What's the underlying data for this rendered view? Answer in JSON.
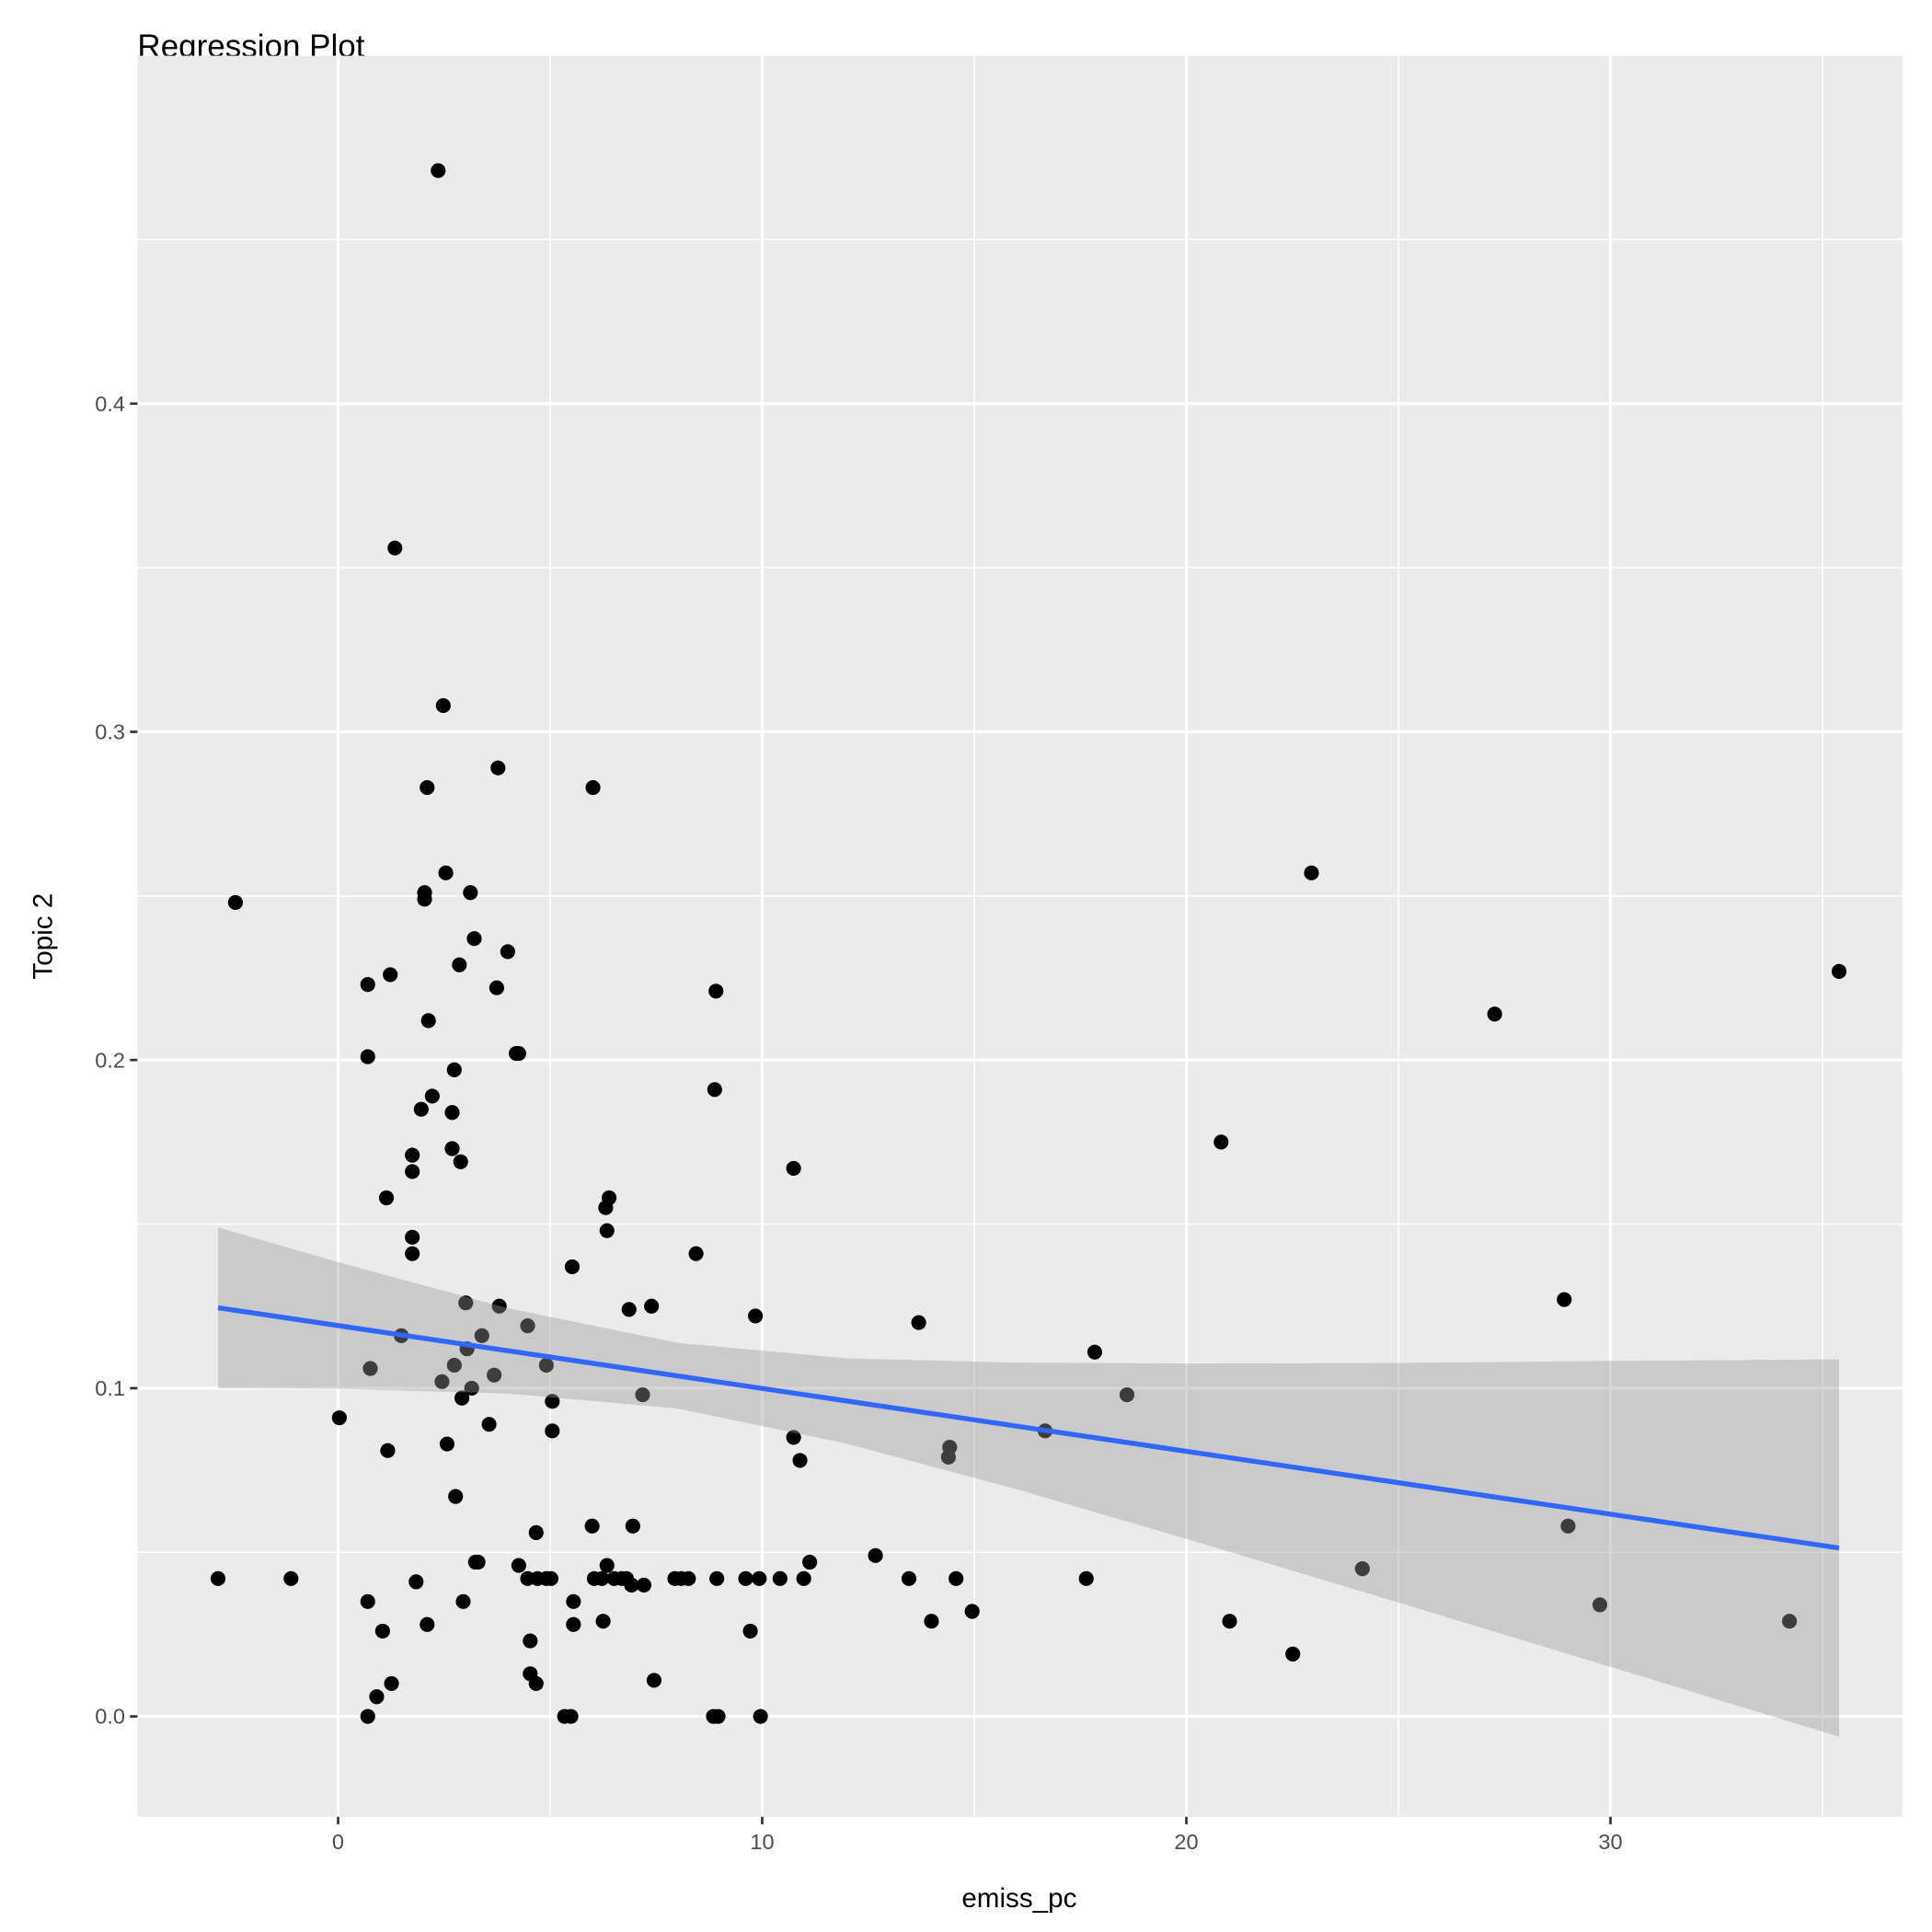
{
  "chart_data": {
    "type": "scatter",
    "title": "Regression Plot",
    "xlabel": "emiss_pc",
    "ylabel": "Topic 2",
    "xlim": [
      -4.73,
      36.88
    ],
    "ylim": [
      -0.0306,
      0.506
    ],
    "x_ticks": [
      0,
      10,
      20,
      30
    ],
    "x_tick_labels": [
      "0",
      "10",
      "20",
      "30"
    ],
    "y_ticks": [
      0.0,
      0.1,
      0.2,
      0.3,
      0.4
    ],
    "y_tick_labels": [
      "0.0",
      "0.1",
      "0.2",
      "0.3",
      "0.4"
    ],
    "grid": true,
    "legend": "none",
    "colors": {
      "panel": "#ebebeb",
      "grid": "#ffffff",
      "points": "#000000",
      "fit_line": "#3366ff",
      "ci_band": "#999999"
    },
    "points": [
      [
        -2.83,
        0.042
      ],
      [
        -2.42,
        0.248
      ],
      [
        -1.11,
        0.042
      ],
      [
        0.03,
        0.091
      ],
      [
        0.7,
        0.223
      ],
      [
        0.7,
        0.201
      ],
      [
        0.76,
        0.106
      ],
      [
        0.7,
        0.035
      ],
      [
        0.7,
        0.0
      ],
      [
        0.91,
        0.006
      ],
      [
        1.05,
        0.026
      ],
      [
        1.17,
        0.081
      ],
      [
        1.14,
        0.158
      ],
      [
        1.23,
        0.226
      ],
      [
        1.26,
        0.01
      ],
      [
        1.34,
        0.356
      ],
      [
        1.49,
        0.116
      ],
      [
        1.75,
        0.171
      ],
      [
        1.75,
        0.166
      ],
      [
        1.75,
        0.146
      ],
      [
        1.75,
        0.141
      ],
      [
        1.84,
        0.041
      ],
      [
        1.96,
        0.185
      ],
      [
        2.04,
        0.251
      ],
      [
        2.04,
        0.249
      ],
      [
        2.1,
        0.283
      ],
      [
        2.1,
        0.028
      ],
      [
        2.13,
        0.212
      ],
      [
        2.22,
        0.189
      ],
      [
        2.36,
        0.471
      ],
      [
        2.45,
        0.102
      ],
      [
        2.48,
        0.308
      ],
      [
        2.54,
        0.257
      ],
      [
        2.57,
        0.083
      ],
      [
        2.69,
        0.184
      ],
      [
        2.69,
        0.173
      ],
      [
        2.74,
        0.197
      ],
      [
        2.74,
        0.107
      ],
      [
        2.77,
        0.067
      ],
      [
        2.86,
        0.229
      ],
      [
        2.89,
        0.169
      ],
      [
        2.92,
        0.097
      ],
      [
        2.95,
        0.035
      ],
      [
        3.01,
        0.126
      ],
      [
        3.04,
        0.112
      ],
      [
        3.12,
        0.251
      ],
      [
        3.15,
        0.1
      ],
      [
        3.21,
        0.237
      ],
      [
        3.24,
        0.047
      ],
      [
        3.3,
        0.047
      ],
      [
        3.39,
        0.116
      ],
      [
        3.56,
        0.089
      ],
      [
        3.68,
        0.104
      ],
      [
        3.74,
        0.222
      ],
      [
        3.77,
        0.289
      ],
      [
        3.8,
        0.125
      ],
      [
        4.0,
        0.233
      ],
      [
        4.2,
        0.202
      ],
      [
        4.26,
        0.202
      ],
      [
        4.26,
        0.046
      ],
      [
        4.47,
        0.119
      ],
      [
        4.47,
        0.042
      ],
      [
        4.53,
        0.023
      ],
      [
        4.53,
        0.013
      ],
      [
        4.67,
        0.056
      ],
      [
        4.67,
        0.01
      ],
      [
        4.7,
        0.042
      ],
      [
        4.91,
        0.107
      ],
      [
        4.91,
        0.042
      ],
      [
        5.05,
        0.096
      ],
      [
        5.05,
        0.087
      ],
      [
        5.02,
        0.042
      ],
      [
        5.34,
        0.0
      ],
      [
        5.49,
        0.0
      ],
      [
        5.52,
        0.137
      ],
      [
        5.55,
        0.035
      ],
      [
        5.55,
        0.028
      ],
      [
        5.99,
        0.058
      ],
      [
        6.01,
        0.283
      ],
      [
        6.04,
        0.042
      ],
      [
        6.22,
        0.042
      ],
      [
        6.25,
        0.029
      ],
      [
        6.31,
        0.155
      ],
      [
        6.34,
        0.148
      ],
      [
        6.34,
        0.046
      ],
      [
        6.39,
        0.158
      ],
      [
        6.51,
        0.042
      ],
      [
        6.69,
        0.042
      ],
      [
        6.8,
        0.042
      ],
      [
        6.86,
        0.124
      ],
      [
        6.92,
        0.04
      ],
      [
        6.95,
        0.058
      ],
      [
        7.18,
        0.098
      ],
      [
        7.21,
        0.04
      ],
      [
        7.39,
        0.125
      ],
      [
        7.45,
        0.011
      ],
      [
        7.94,
        0.042
      ],
      [
        8.09,
        0.042
      ],
      [
        8.26,
        0.042
      ],
      [
        8.44,
        0.141
      ],
      [
        8.91,
        0.221
      ],
      [
        8.88,
        0.191
      ],
      [
        8.93,
        0.042
      ],
      [
        8.85,
        0.0
      ],
      [
        8.96,
        0.0
      ],
      [
        9.61,
        0.042
      ],
      [
        9.72,
        0.026
      ],
      [
        9.84,
        0.122
      ],
      [
        9.93,
        0.042
      ],
      [
        9.96,
        0.0
      ],
      [
        10.42,
        0.042
      ],
      [
        10.74,
        0.167
      ],
      [
        10.74,
        0.085
      ],
      [
        10.89,
        0.078
      ],
      [
        10.98,
        0.042
      ],
      [
        11.12,
        0.047
      ],
      [
        12.67,
        0.049
      ],
      [
        13.46,
        0.042
      ],
      [
        13.69,
        0.12
      ],
      [
        13.99,
        0.029
      ],
      [
        14.39,
        0.079
      ],
      [
        14.42,
        0.082
      ],
      [
        14.57,
        0.042
      ],
      [
        14.95,
        0.032
      ],
      [
        16.67,
        0.087
      ],
      [
        17.64,
        0.042
      ],
      [
        17.84,
        0.111
      ],
      [
        18.6,
        0.098
      ],
      [
        20.82,
        0.175
      ],
      [
        21.02,
        0.029
      ],
      [
        22.51,
        0.019
      ],
      [
        22.95,
        0.257
      ],
      [
        24.15,
        0.045
      ],
      [
        27.27,
        0.214
      ],
      [
        28.91,
        0.127
      ],
      [
        29.0,
        0.058
      ],
      [
        29.75,
        0.034
      ],
      [
        34.22,
        0.029
      ],
      [
        35.39,
        0.227
      ]
    ],
    "fit_line": {
      "x": [
        -2.83,
        35.39
      ],
      "y": [
        0.1245,
        0.0513
      ]
    },
    "ci_band": {
      "x": [
        -2.83,
        0,
        4,
        8,
        12,
        16,
        20,
        25,
        30,
        35.39
      ],
      "lower": [
        0.1,
        0.0998,
        0.0984,
        0.0938,
        0.0831,
        0.0692,
        0.0541,
        0.0347,
        0.0151,
        -0.0062
      ],
      "upper": [
        0.149,
        0.1384,
        0.1244,
        0.1138,
        0.1091,
        0.1078,
        0.1075,
        0.1077,
        0.1083,
        0.1088
      ]
    }
  }
}
